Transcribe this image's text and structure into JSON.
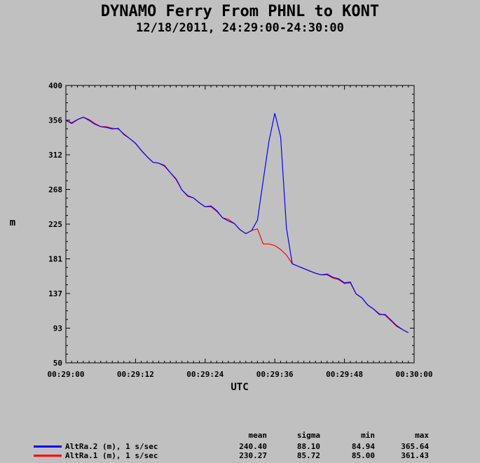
{
  "chart_data": {
    "type": "line",
    "title": "DYNAMO Ferry From PHNL to KONT",
    "subtitle": "12/18/2011, 24:29:00-24:30:00",
    "xlabel": "UTC",
    "ylabel": "m",
    "ylim": [
      50,
      400
    ],
    "xlim": [
      0,
      60
    ],
    "y_ticks": [
      "400",
      "356",
      "312",
      "268",
      "225",
      "181",
      "137",
      "93",
      "50"
    ],
    "x_ticks": [
      "00:29:00",
      "00:29:12",
      "00:29:24",
      "00:29:36",
      "00:29:48",
      "00:30:00"
    ],
    "grid": false,
    "stats_headers": [
      "mean",
      "sigma",
      "min",
      "max"
    ],
    "series": [
      {
        "name": "AltRa.2 (m), 1 s/sec",
        "color": "#0000ff",
        "stats": [
          "240.40",
          "88.10",
          "84.94",
          "365.64"
        ],
        "x": [
          0,
          1,
          2,
          3,
          4,
          5,
          6,
          7,
          8,
          9,
          10,
          11,
          12,
          13,
          14,
          15,
          16,
          17,
          18,
          19,
          20,
          21,
          22,
          23,
          24,
          25,
          26,
          27,
          28,
          29,
          30,
          31,
          32,
          33,
          34,
          35,
          36,
          37,
          38,
          39,
          40,
          41,
          42,
          43,
          44,
          45,
          46,
          47,
          48,
          49,
          50,
          51,
          52,
          53,
          54,
          55,
          56,
          57,
          58,
          59
        ],
        "values": [
          356,
          352,
          357,
          360,
          356,
          351,
          348,
          347,
          345,
          346,
          338,
          333,
          327,
          318,
          310,
          303,
          302,
          299,
          290,
          282,
          268,
          261,
          258,
          252,
          247,
          248,
          242,
          233,
          229,
          226,
          218,
          213,
          217,
          230,
          280,
          330,
          365,
          335,
          220,
          175,
          172,
          169,
          166,
          163,
          161,
          162,
          158,
          156,
          151,
          152,
          137,
          132,
          123,
          118,
          111,
          111,
          104,
          97,
          92,
          88
        ]
      },
      {
        "name": "AltRa.1 (m), 1 s/sec",
        "color": "#ff0000",
        "stats": [
          "230.27",
          "85.72",
          "85.00",
          "361.43"
        ],
        "x": [
          0,
          1,
          2,
          3,
          4,
          5,
          6,
          7,
          8,
          9,
          10,
          11,
          12,
          13,
          14,
          15,
          16,
          17,
          18,
          19,
          20,
          21,
          22,
          23,
          24,
          25,
          26,
          27,
          28,
          29,
          30,
          31,
          32,
          33,
          34,
          35,
          36,
          37,
          38,
          39,
          40,
          41,
          42,
          43,
          44,
          45,
          46,
          47,
          48,
          49,
          50,
          51,
          52,
          53,
          54,
          55,
          56,
          57,
          58,
          59
        ],
        "values": [
          356,
          353,
          357,
          360,
          357,
          352,
          348,
          348,
          346,
          345,
          339,
          333,
          327,
          318,
          310,
          303,
          302,
          298,
          290,
          281,
          268,
          260,
          258,
          252,
          247,
          247,
          241,
          233,
          231,
          226,
          218,
          213,
          217,
          219,
          200,
          200,
          198,
          193,
          186,
          175,
          172,
          169,
          166,
          163,
          161,
          161,
          157,
          155,
          150,
          151,
          137,
          132,
          123,
          118,
          112,
          110,
          103,
          96,
          92,
          88
        ]
      }
    ]
  }
}
